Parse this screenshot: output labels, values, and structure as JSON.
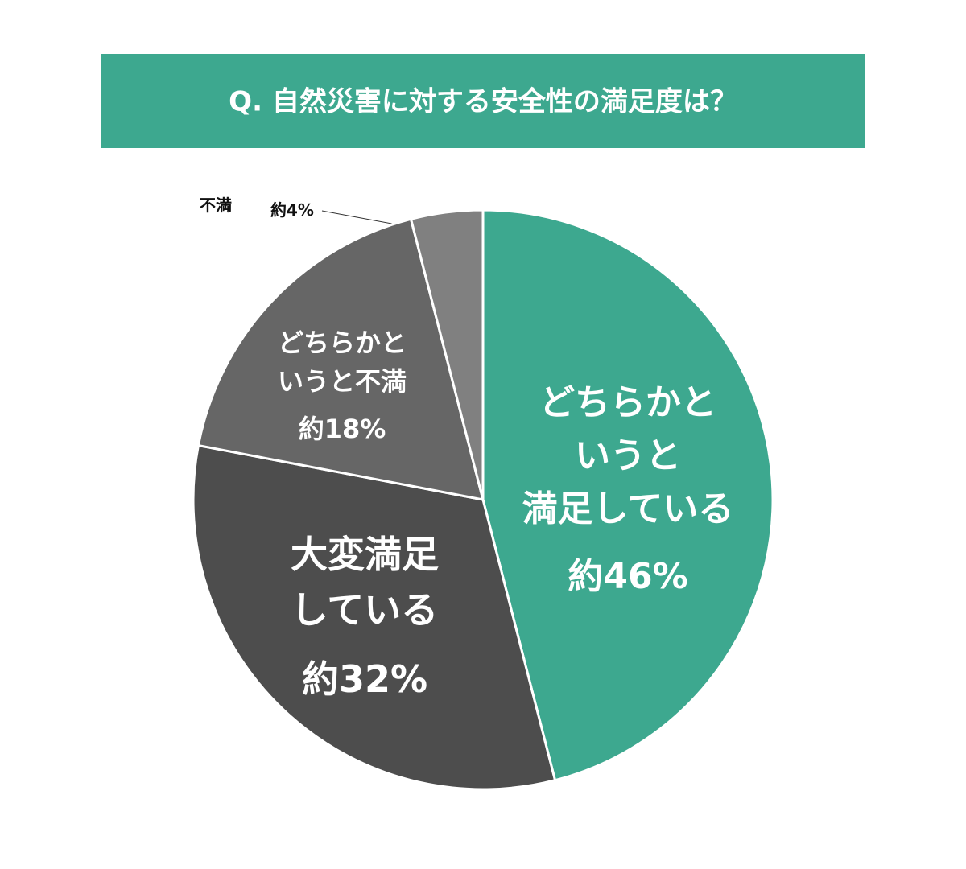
{
  "chart_data": {
    "type": "pie",
    "title": "Q. 自然災害に対する安全性の満足度は？",
    "categories": [
      "どちらかと\nいうと\n満足している",
      "大変満足\nしている",
      "どちらかと\nいうと不満",
      "不満"
    ],
    "values": [
      46,
      32,
      18,
      4
    ],
    "value_labels": [
      "約46%",
      "約32%",
      "約18%",
      "約4%"
    ],
    "colors": [
      "#3da88f",
      "#4d4d4d",
      "#666666",
      "#808080"
    ]
  }
}
